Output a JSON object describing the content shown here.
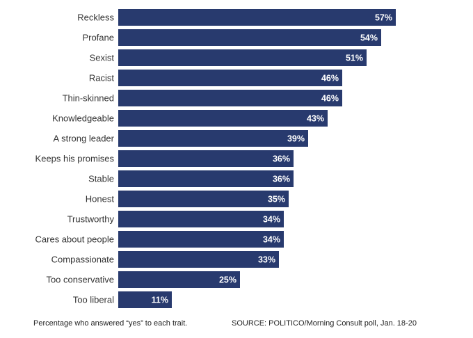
{
  "footer": {
    "note": "Percentage who answered “yes” to each trait.",
    "source": "SOURCE: POLITICO/Morning Consult poll, Jan. 18-20"
  },
  "colors": {
    "bar": "#283a6e",
    "background": "#ffffff"
  },
  "chart_data": {
    "type": "bar",
    "orientation": "horizontal",
    "categories": [
      "Reckless",
      "Profane",
      "Sexist",
      "Racist",
      "Thin-skinned",
      "Knowledgeable",
      "A strong leader",
      "Keeps his promises",
      "Stable",
      "Honest",
      "Trustworthy",
      "Cares about people",
      "Compassionate",
      "Too conservative",
      "Too liberal"
    ],
    "values": [
      57,
      54,
      51,
      46,
      46,
      43,
      39,
      36,
      36,
      35,
      34,
      34,
      33,
      25,
      11
    ],
    "value_labels": [
      "57%",
      "54%",
      "51%",
      "46%",
      "46%",
      "43%",
      "39%",
      "36%",
      "36%",
      "35%",
      "34%",
      "34%",
      "33%",
      "25%",
      "11%"
    ],
    "unit": "%",
    "title": "",
    "xlabel": "",
    "ylabel": "",
    "grid": false,
    "legend": "none"
  }
}
